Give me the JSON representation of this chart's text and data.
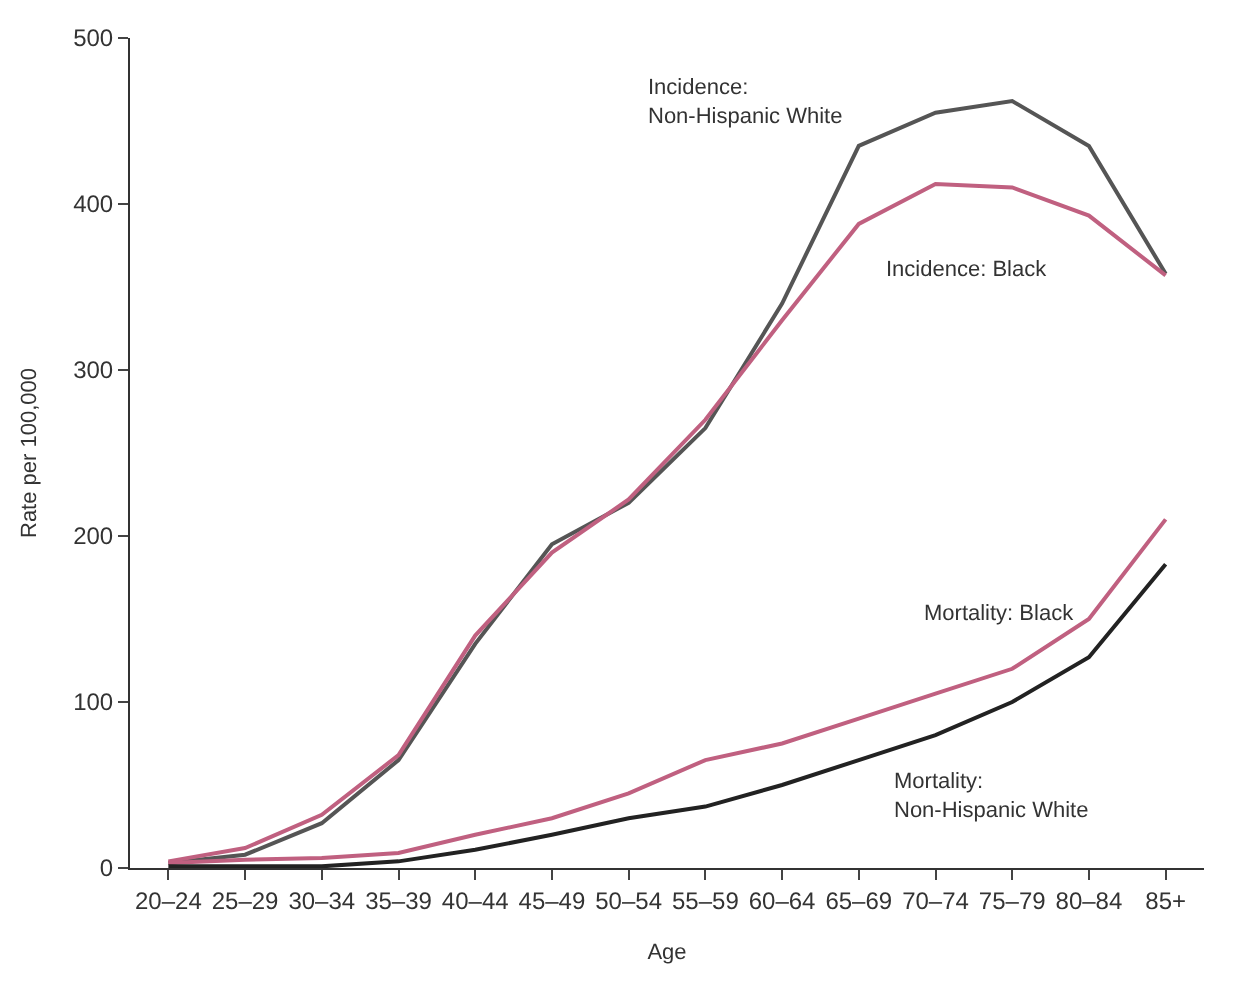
{
  "chart_data": {
    "type": "line",
    "xlabel": "Age",
    "ylabel": "Rate per 100,000",
    "categories": [
      "20–24",
      "25–29",
      "30–34",
      "35–39",
      "40–44",
      "45–49",
      "50–54",
      "55–59",
      "60–64",
      "65–69",
      "70–74",
      "75–79",
      "80–84",
      "85+"
    ],
    "series": [
      {
        "name": "Incidence:\nNon-Hispanic White",
        "color": "#555555",
        "values": [
          3,
          8,
          27,
          65,
          135,
          195,
          220,
          265,
          340,
          435,
          455,
          462,
          435,
          358
        ]
      },
      {
        "name": "Incidence: Black",
        "color": "#c06080",
        "values": [
          4,
          12,
          32,
          68,
          140,
          190,
          222,
          270,
          330,
          388,
          412,
          410,
          393,
          357
        ]
      },
      {
        "name": "Mortality: Black",
        "color": "#c06080",
        "values": [
          3,
          5,
          6,
          9,
          20,
          30,
          45,
          65,
          75,
          90,
          105,
          120,
          150,
          210
        ]
      },
      {
        "name": "Mortality:\nNon-Hispanic White",
        "color": "#222222",
        "values": [
          1,
          1,
          1,
          4,
          11,
          20,
          30,
          37,
          50,
          65,
          80,
          100,
          127,
          183
        ]
      }
    ],
    "ylim": [
      0,
      500
    ],
    "yticks": [
      0,
      100,
      200,
      300,
      400,
      500
    ],
    "legend": false,
    "marker": "none",
    "line_style": "solid"
  }
}
